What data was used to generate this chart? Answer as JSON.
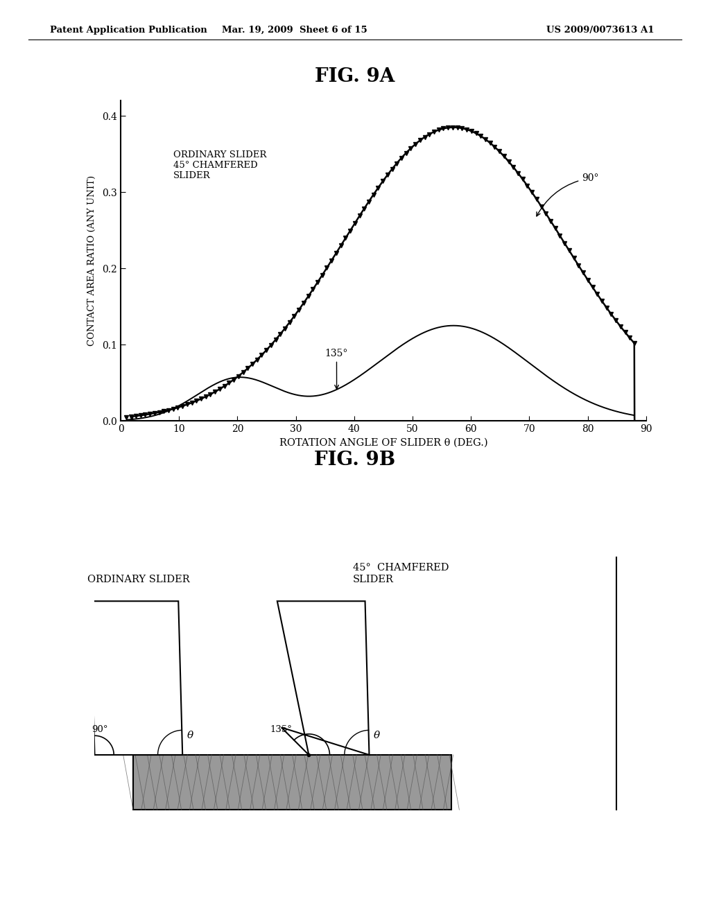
{
  "header_left": "Patent Application Publication",
  "header_mid": "Mar. 19, 2009  Sheet 6 of 15",
  "header_right": "US 2009/0073613 A1",
  "fig9a_title": "FIG. 9A",
  "fig9b_title": "FIG. 9B",
  "xlabel": "ROTATION ANGLE OF SLIDER θ (DEG.)",
  "ylabel": "CONTACT AREA RATIO (ANY UNIT)",
  "xlim": [
    0,
    90
  ],
  "ylim": [
    0.0,
    0.42
  ],
  "yticks": [
    0.0,
    0.1,
    0.2,
    0.3,
    0.4
  ],
  "xticks": [
    0,
    10,
    20,
    30,
    40,
    50,
    60,
    70,
    80,
    90
  ],
  "bg_color": "#ffffff"
}
